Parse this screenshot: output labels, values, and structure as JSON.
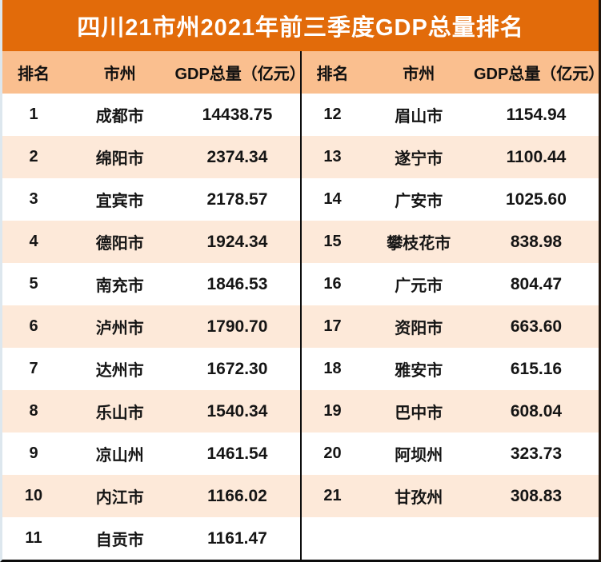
{
  "chart_data": {
    "type": "table",
    "title": "四川21市州2021年前三季度GDP总量排名",
    "columns": [
      "排名",
      "市州",
      "GDP总量（亿元）"
    ],
    "rows": [
      [
        "1",
        "成都市",
        "14438.75"
      ],
      [
        "2",
        "绵阳市",
        "2374.34"
      ],
      [
        "3",
        "宜宾市",
        "2178.57"
      ],
      [
        "4",
        "德阳市",
        "1924.34"
      ],
      [
        "5",
        "南充市",
        "1846.53"
      ],
      [
        "6",
        "泸州市",
        "1790.70"
      ],
      [
        "7",
        "达州市",
        "1672.30"
      ],
      [
        "8",
        "乐山市",
        "1540.34"
      ],
      [
        "9",
        "凉山州",
        "1461.54"
      ],
      [
        "10",
        "内江市",
        "1166.02"
      ],
      [
        "11",
        "自贡市",
        "1161.47"
      ],
      [
        "12",
        "眉山市",
        "1154.94"
      ],
      [
        "13",
        "遂宁市",
        "1100.44"
      ],
      [
        "14",
        "广安市",
        "1025.60"
      ],
      [
        "15",
        "攀枝花市",
        "838.98"
      ],
      [
        "16",
        "广元市",
        "804.47"
      ],
      [
        "17",
        "资阳市",
        "663.60"
      ],
      [
        "18",
        "雅安市",
        "615.16"
      ],
      [
        "19",
        "巴中市",
        "608.04"
      ],
      [
        "20",
        "阿坝州",
        "323.73"
      ],
      [
        "21",
        "甘孜州",
        "308.83"
      ]
    ],
    "split_index": 11,
    "rows_per_column": 11,
    "legend_position": "none",
    "grid": "striped-rows"
  },
  "colors": {
    "orange": "#E26B0A",
    "header_bg": "#FABF8F",
    "stripe_bg": "#FDE9D9",
    "row_bg": "#FFFFFF",
    "divider": "#0D0D0D",
    "title_text": "#FFFFFF",
    "body_text": "#151515",
    "left_edge": "#DDE7EE",
    "right_edge": "#21160E"
  }
}
